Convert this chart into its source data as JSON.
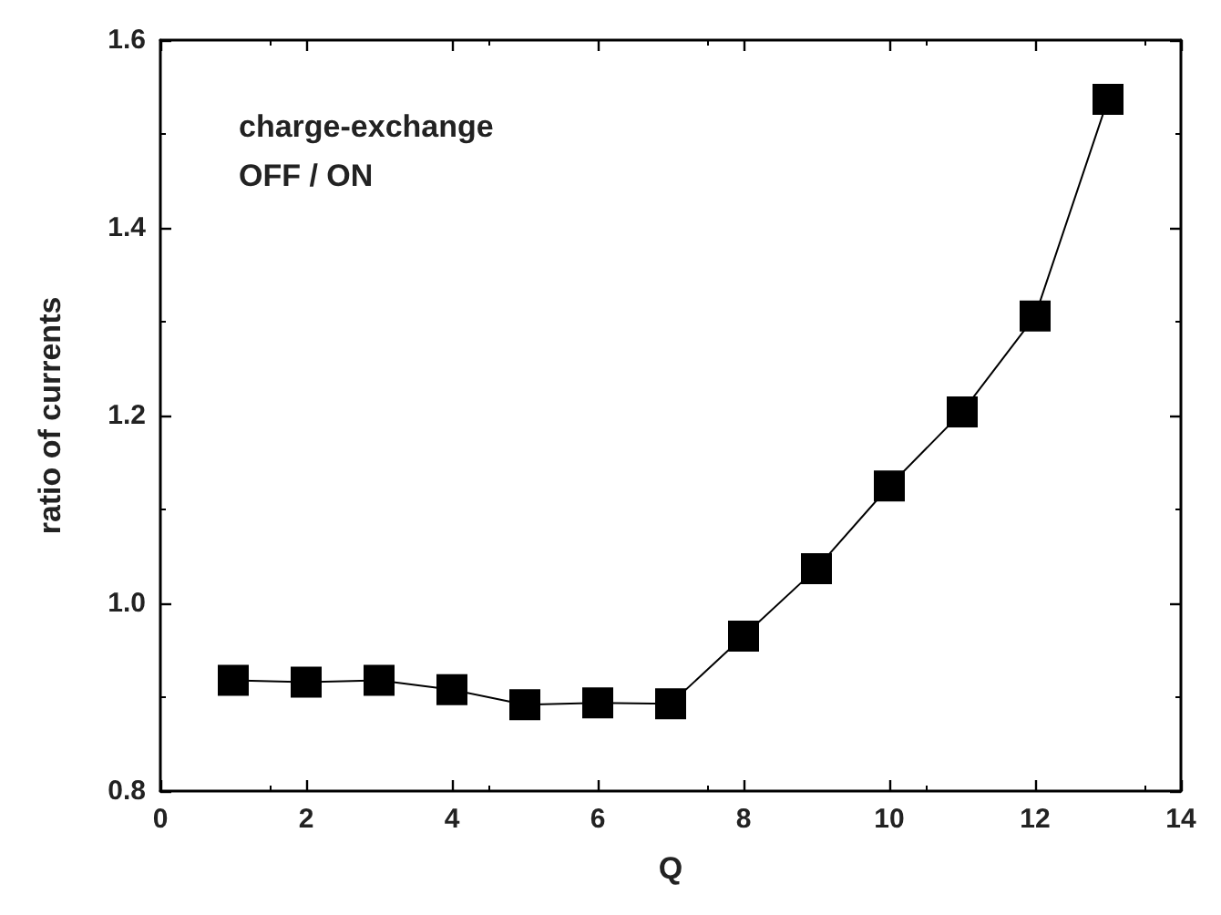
{
  "chart_data": {
    "type": "line",
    "xlabel": "Q",
    "ylabel": "ratio of currents",
    "annotations": [
      "charge-exchange",
      "OFF / ON"
    ],
    "x": [
      1,
      2,
      3,
      4,
      5,
      6,
      7,
      8,
      9,
      10,
      11,
      12,
      13
    ],
    "series": [
      {
        "color": "#000000",
        "values": [
          0.918,
          0.916,
          0.918,
          0.908,
          0.892,
          0.894,
          0.893,
          0.965,
          1.037,
          1.125,
          1.204,
          1.306,
          1.537
        ]
      }
    ],
    "xlim": [
      0,
      14
    ],
    "xticks": [
      0,
      2,
      4,
      6,
      8,
      10,
      12,
      14
    ],
    "ylim": [
      0.8,
      1.6
    ],
    "yticks": [
      {
        "value": 0.8,
        "label": "0.8"
      },
      {
        "value": 1.0,
        "label": "1.0"
      },
      {
        "value": 1.2,
        "label": "1.2"
      },
      {
        "value": 1.4,
        "label": "1.4"
      },
      {
        "value": 1.6,
        "label": "1.6"
      }
    ],
    "marker": "square",
    "line_style": "solid"
  }
}
